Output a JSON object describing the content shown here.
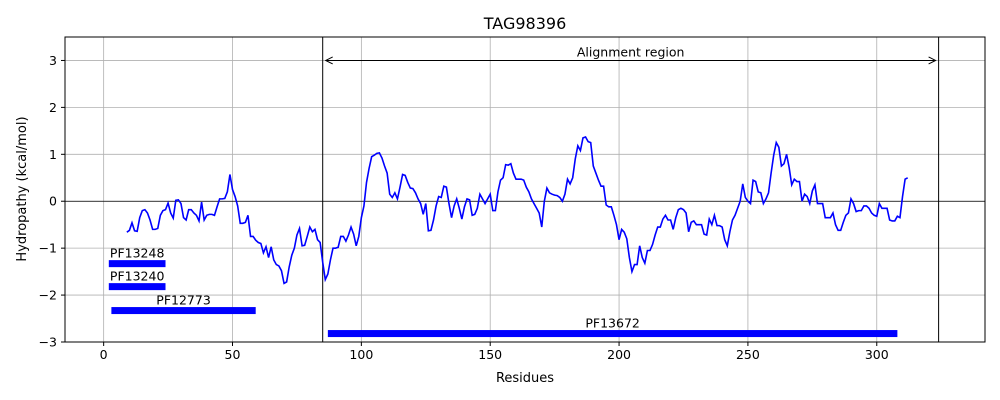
{
  "chart_data": {
    "type": "line",
    "title": "TAG98396",
    "xlabel": "Residues",
    "ylabel": "Hydropathy (kcal/mol)",
    "xlim": [
      -15,
      342
    ],
    "ylim": [
      -3,
      3.5
    ],
    "xticks": [
      0,
      50,
      100,
      150,
      200,
      250,
      300
    ],
    "yticks": [
      -3,
      -2,
      -1,
      0,
      1,
      2,
      3
    ],
    "grid": true,
    "line_color": "#0000ff",
    "series": [
      {
        "values": [
          [
            9,
            -0.66
          ],
          [
            10,
            -0.62
          ],
          [
            11,
            -0.46
          ],
          [
            12,
            -0.63
          ],
          [
            13,
            -0.64
          ],
          [
            14,
            -0.35
          ],
          [
            15,
            -0.2
          ],
          [
            16,
            -0.18
          ],
          [
            17,
            -0.25
          ],
          [
            18,
            -0.4
          ],
          [
            19,
            -0.6
          ],
          [
            20,
            -0.6
          ],
          [
            21,
            -0.58
          ],
          [
            22,
            -0.3
          ],
          [
            23,
            -0.2
          ],
          [
            24,
            -0.18
          ],
          [
            25,
            -0.04
          ],
          [
            26,
            -0.25
          ],
          [
            27,
            -0.36
          ],
          [
            28,
            0.02
          ],
          [
            29,
            0.03
          ],
          [
            30,
            -0.05
          ],
          [
            31,
            -0.35
          ],
          [
            32,
            -0.4
          ],
          [
            33,
            -0.18
          ],
          [
            34,
            -0.18
          ],
          [
            35,
            -0.25
          ],
          [
            36,
            -0.3
          ],
          [
            37,
            -0.42
          ],
          [
            38,
            -0.02
          ],
          [
            39,
            -0.4
          ],
          [
            40,
            -0.3
          ],
          [
            41,
            -0.28
          ],
          [
            42,
            -0.28
          ],
          [
            43,
            -0.3
          ],
          [
            44,
            -0.12
          ],
          [
            45,
            0.05
          ],
          [
            46,
            0.05
          ],
          [
            47,
            0.06
          ],
          [
            48,
            0.2
          ],
          [
            49,
            0.57
          ],
          [
            50,
            0.25
          ],
          [
            51,
            0.1
          ],
          [
            52,
            -0.1
          ],
          [
            53,
            -0.47
          ],
          [
            54,
            -0.47
          ],
          [
            55,
            -0.45
          ],
          [
            56,
            -0.3
          ],
          [
            57,
            -0.75
          ],
          [
            58,
            -0.75
          ],
          [
            59,
            -0.83
          ],
          [
            60,
            -0.88
          ],
          [
            61,
            -0.9
          ],
          [
            62,
            -1.1
          ],
          [
            63,
            -0.97
          ],
          [
            64,
            -1.2
          ],
          [
            65,
            -0.97
          ],
          [
            66,
            -1.25
          ],
          [
            67,
            -1.35
          ],
          [
            68,
            -1.38
          ],
          [
            69,
            -1.48
          ],
          [
            70,
            -1.75
          ],
          [
            71,
            -1.72
          ],
          [
            72,
            -1.4
          ],
          [
            73,
            -1.15
          ],
          [
            74,
            -1.0
          ],
          [
            75,
            -0.72
          ],
          [
            76,
            -0.58
          ],
          [
            77,
            -0.95
          ],
          [
            78,
            -0.94
          ],
          [
            79,
            -0.75
          ],
          [
            80,
            -0.55
          ],
          [
            81,
            -0.65
          ],
          [
            82,
            -0.6
          ],
          [
            83,
            -0.82
          ],
          [
            84,
            -0.88
          ],
          [
            85,
            -1.3
          ],
          [
            86,
            -1.67
          ],
          [
            87,
            -1.55
          ],
          [
            88,
            -1.25
          ],
          [
            89,
            -1.0
          ],
          [
            90,
            -1.0
          ],
          [
            91,
            -0.98
          ],
          [
            92,
            -0.75
          ],
          [
            93,
            -0.75
          ],
          [
            94,
            -0.85
          ],
          [
            95,
            -0.72
          ],
          [
            96,
            -0.55
          ],
          [
            97,
            -0.7
          ],
          [
            98,
            -0.95
          ],
          [
            99,
            -0.75
          ],
          [
            100,
            -0.35
          ],
          [
            101,
            -0.1
          ],
          [
            102,
            0.4
          ],
          [
            103,
            0.7
          ],
          [
            104,
            0.95
          ],
          [
            105,
            0.98
          ],
          [
            106,
            1.02
          ],
          [
            107,
            1.03
          ],
          [
            108,
            0.92
          ],
          [
            109,
            0.75
          ],
          [
            110,
            0.6
          ],
          [
            111,
            0.15
          ],
          [
            112,
            0.08
          ],
          [
            113,
            0.18
          ],
          [
            114,
            0.05
          ],
          [
            115,
            0.3
          ],
          [
            116,
            0.57
          ],
          [
            117,
            0.55
          ],
          [
            118,
            0.4
          ],
          [
            119,
            0.28
          ],
          [
            120,
            0.27
          ],
          [
            121,
            0.18
          ],
          [
            122,
            0.05
          ],
          [
            123,
            -0.05
          ],
          [
            124,
            -0.28
          ],
          [
            125,
            -0.05
          ],
          [
            126,
            -0.63
          ],
          [
            127,
            -0.62
          ],
          [
            128,
            -0.4
          ],
          [
            129,
            -0.1
          ],
          [
            130,
            0.1
          ],
          [
            131,
            0.08
          ],
          [
            132,
            0.32
          ],
          [
            133,
            0.3
          ],
          [
            134,
            -0.05
          ],
          [
            135,
            -0.35
          ],
          [
            136,
            -0.1
          ],
          [
            137,
            0.05
          ],
          [
            138,
            -0.15
          ],
          [
            139,
            -0.38
          ],
          [
            140,
            -0.12
          ],
          [
            141,
            0.05
          ],
          [
            142,
            0.03
          ],
          [
            143,
            -0.3
          ],
          [
            144,
            -0.28
          ],
          [
            145,
            -0.15
          ],
          [
            146,
            0.15
          ],
          [
            147,
            0.05
          ],
          [
            148,
            -0.05
          ],
          [
            149,
            0.05
          ],
          [
            150,
            0.15
          ],
          [
            151,
            -0.2
          ],
          [
            152,
            -0.2
          ],
          [
            153,
            0.2
          ],
          [
            154,
            0.45
          ],
          [
            155,
            0.5
          ],
          [
            156,
            0.78
          ],
          [
            157,
            0.77
          ],
          [
            158,
            0.8
          ],
          [
            159,
            0.6
          ],
          [
            160,
            0.47
          ],
          [
            161,
            0.47
          ],
          [
            162,
            0.47
          ],
          [
            163,
            0.45
          ],
          [
            164,
            0.3
          ],
          [
            165,
            0.2
          ],
          [
            166,
            0.05
          ],
          [
            167,
            -0.05
          ],
          [
            168,
            -0.15
          ],
          [
            169,
            -0.25
          ],
          [
            170,
            -0.55
          ],
          [
            171,
            0.0
          ],
          [
            172,
            0.28
          ],
          [
            173,
            0.18
          ],
          [
            174,
            0.15
          ],
          [
            175,
            0.13
          ],
          [
            176,
            0.12
          ],
          [
            177,
            0.08
          ],
          [
            178,
            0.0
          ],
          [
            179,
            0.15
          ],
          [
            180,
            0.47
          ],
          [
            181,
            0.37
          ],
          [
            182,
            0.5
          ],
          [
            183,
            0.9
          ],
          [
            184,
            1.18
          ],
          [
            185,
            1.08
          ],
          [
            186,
            1.35
          ],
          [
            187,
            1.37
          ],
          [
            188,
            1.27
          ],
          [
            189,
            1.25
          ],
          [
            190,
            0.75
          ],
          [
            191,
            0.6
          ],
          [
            192,
            0.45
          ],
          [
            193,
            0.32
          ],
          [
            194,
            0.32
          ],
          [
            195,
            -0.08
          ],
          [
            196,
            -0.12
          ],
          [
            197,
            -0.12
          ],
          [
            198,
            -0.3
          ],
          [
            199,
            -0.5
          ],
          [
            200,
            -0.82
          ],
          [
            201,
            -0.6
          ],
          [
            202,
            -0.66
          ],
          [
            203,
            -0.8
          ],
          [
            204,
            -1.2
          ],
          [
            205,
            -1.5
          ],
          [
            206,
            -1.35
          ],
          [
            207,
            -1.35
          ],
          [
            208,
            -0.95
          ],
          [
            209,
            -1.2
          ],
          [
            210,
            -1.32
          ],
          [
            211,
            -1.05
          ],
          [
            212,
            -1.05
          ],
          [
            213,
            -0.92
          ],
          [
            214,
            -0.72
          ],
          [
            215,
            -0.55
          ],
          [
            216,
            -0.55
          ],
          [
            217,
            -0.38
          ],
          [
            218,
            -0.3
          ],
          [
            219,
            -0.4
          ],
          [
            220,
            -0.4
          ],
          [
            221,
            -0.6
          ],
          [
            222,
            -0.35
          ],
          [
            223,
            -0.18
          ],
          [
            224,
            -0.15
          ],
          [
            225,
            -0.18
          ],
          [
            226,
            -0.25
          ],
          [
            227,
            -0.65
          ],
          [
            228,
            -0.45
          ],
          [
            229,
            -0.42
          ],
          [
            230,
            -0.5
          ],
          [
            231,
            -0.5
          ],
          [
            232,
            -0.5
          ],
          [
            233,
            -0.7
          ],
          [
            234,
            -0.72
          ],
          [
            235,
            -0.38
          ],
          [
            236,
            -0.5
          ],
          [
            237,
            -0.3
          ],
          [
            238,
            -0.52
          ],
          [
            239,
            -0.52
          ],
          [
            240,
            -0.55
          ],
          [
            241,
            -0.82
          ],
          [
            242,
            -0.95
          ],
          [
            243,
            -0.65
          ],
          [
            244,
            -0.4
          ],
          [
            245,
            -0.3
          ],
          [
            246,
            -0.15
          ],
          [
            247,
            0.0
          ],
          [
            248,
            0.37
          ],
          [
            249,
            0.08
          ],
          [
            250,
            0.0
          ],
          [
            251,
            -0.05
          ],
          [
            252,
            0.45
          ],
          [
            253,
            0.42
          ],
          [
            254,
            0.2
          ],
          [
            255,
            0.18
          ],
          [
            256,
            -0.05
          ],
          [
            257,
            0.05
          ],
          [
            258,
            0.18
          ],
          [
            259,
            0.6
          ],
          [
            260,
            0.98
          ],
          [
            261,
            1.25
          ],
          [
            262,
            1.15
          ],
          [
            263,
            0.75
          ],
          [
            264,
            0.8
          ],
          [
            265,
            1.0
          ],
          [
            266,
            0.72
          ],
          [
            267,
            0.35
          ],
          [
            268,
            0.47
          ],
          [
            269,
            0.42
          ],
          [
            270,
            0.42
          ],
          [
            271,
            0.0
          ],
          [
            272,
            0.15
          ],
          [
            273,
            0.1
          ],
          [
            274,
            -0.05
          ],
          [
            275,
            0.22
          ],
          [
            276,
            0.35
          ],
          [
            277,
            -0.05
          ],
          [
            278,
            -0.05
          ],
          [
            279,
            -0.05
          ],
          [
            280,
            -0.35
          ],
          [
            281,
            -0.35
          ],
          [
            282,
            -0.35
          ],
          [
            283,
            -0.25
          ],
          [
            284,
            -0.5
          ],
          [
            285,
            -0.62
          ],
          [
            286,
            -0.62
          ],
          [
            287,
            -0.45
          ],
          [
            288,
            -0.3
          ],
          [
            289,
            -0.25
          ],
          [
            290,
            0.05
          ],
          [
            291,
            -0.05
          ],
          [
            292,
            -0.22
          ],
          [
            293,
            -0.2
          ],
          [
            294,
            -0.2
          ],
          [
            295,
            -0.1
          ],
          [
            296,
            -0.1
          ],
          [
            297,
            -0.15
          ],
          [
            298,
            -0.25
          ],
          [
            299,
            -0.3
          ],
          [
            300,
            -0.32
          ],
          [
            301,
            -0.05
          ],
          [
            302,
            -0.15
          ],
          [
            303,
            -0.15
          ],
          [
            304,
            -0.15
          ],
          [
            305,
            -0.4
          ],
          [
            306,
            -0.42
          ],
          [
            307,
            -0.42
          ],
          [
            308,
            -0.32
          ],
          [
            309,
            -0.35
          ],
          [
            310,
            0.1
          ],
          [
            311,
            0.47
          ],
          [
            312,
            0.5
          ]
        ]
      }
    ],
    "reference_lines": {
      "horizontal_y": 0,
      "vertical_x": [
        85,
        324
      ]
    },
    "annotation": {
      "label": "Alignment region",
      "x_start": 85,
      "x_end": 324,
      "y": 3.0
    },
    "domains": [
      {
        "label": "PF13248",
        "start": 2,
        "end": 24,
        "y": -1.33
      },
      {
        "label": "PF13240",
        "start": 2,
        "end": 24,
        "y": -1.82
      },
      {
        "label": "PF12773",
        "start": 3,
        "end": 59,
        "y": -2.33
      },
      {
        "label": "PF13672",
        "start": 87,
        "end": 308,
        "y": -2.82
      }
    ],
    "domain_color": "#0000ff"
  }
}
